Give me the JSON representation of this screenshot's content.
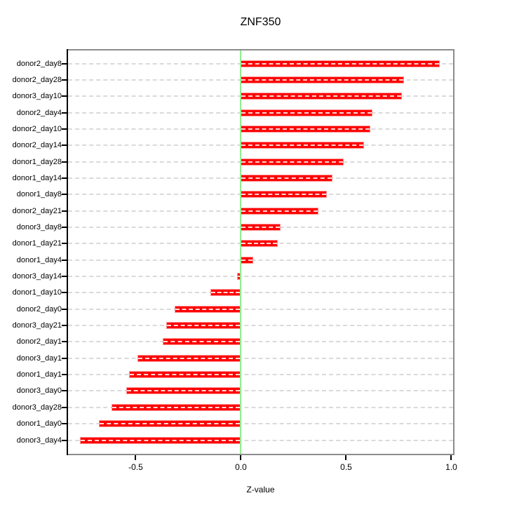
{
  "title": "ZNF350",
  "chart_data": {
    "type": "bar",
    "orientation": "horizontal",
    "title": "ZNF350",
    "xlabel": "Z-value",
    "ylabel": "",
    "categories": [
      "donor2_day8",
      "donor2_day28",
      "donor3_day10",
      "donor2_day4",
      "donor2_day10",
      "donor2_day14",
      "donor1_day28",
      "donor1_day14",
      "donor1_day8",
      "donor2_day21",
      "donor3_day8",
      "donor1_day21",
      "donor1_day4",
      "donor3_day14",
      "donor1_day10",
      "donor2_day0",
      "donor3_day21",
      "donor2_day1",
      "donor3_day1",
      "donor1_day1",
      "donor3_day0",
      "donor3_day28",
      "donor1_day0",
      "donor3_day4"
    ],
    "values": [
      0.945,
      0.775,
      0.765,
      0.625,
      0.615,
      0.585,
      0.49,
      0.435,
      0.41,
      0.37,
      0.19,
      0.175,
      0.06,
      -0.018,
      -0.145,
      -0.315,
      -0.355,
      -0.37,
      -0.49,
      -0.53,
      -0.545,
      -0.615,
      -0.675,
      -0.765
    ],
    "xlim": [
      -0.8283,
      1.015
    ],
    "xticks": [
      -0.5,
      0.0,
      0.5,
      1.0
    ],
    "xtick_labels": [
      "-0.5",
      "0.0",
      "0.5",
      "1.0"
    ],
    "grid": true,
    "legend": "none",
    "zero_reference_line": 0.0,
    "colors": {
      "bar_fill": "#fe0000",
      "bar_edge": "#ff9292",
      "zero_line": "#90ee90",
      "grid_line": "#dadada",
      "box_border": "#8c8c8c",
      "axis": "#000000",
      "text": "#000000",
      "background": "#ffffff"
    }
  }
}
